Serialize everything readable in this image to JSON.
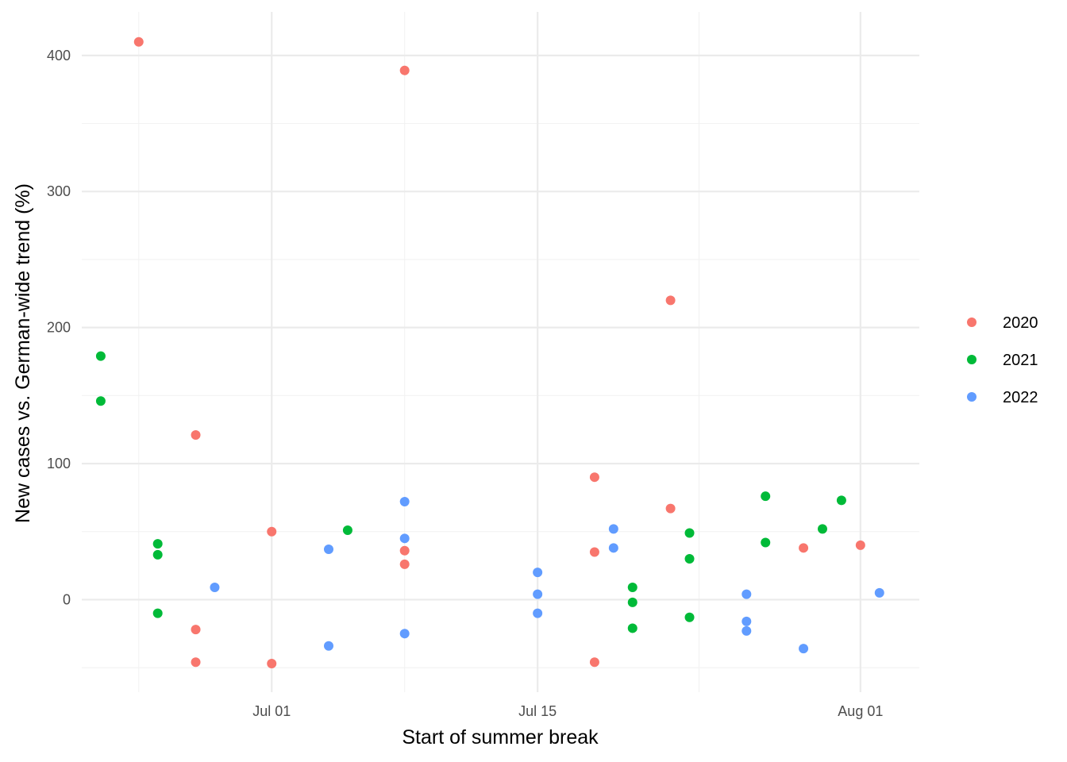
{
  "chart_data": {
    "type": "scatter",
    "xlabel": "Start of summer break",
    "ylabel": "New cases vs. German-wide trend (%)",
    "x_ticks": [
      {
        "date": "2020-07-01",
        "label": "Jul 01"
      },
      {
        "date": "2020-07-15",
        "label": "Jul 15"
      },
      {
        "date": "2020-08-01",
        "label": "Aug 01"
      }
    ],
    "y_ticks": [
      0,
      100,
      200,
      300,
      400
    ],
    "xlim": [
      "2020-06-22",
      "2020-08-04"
    ],
    "ylim": [
      -68,
      432
    ],
    "grid": true,
    "legend_position": "right",
    "series": [
      {
        "name": "2020",
        "color": "#F8766D",
        "points": [
          {
            "x": "2020-06-24",
            "y": 410
          },
          {
            "x": "2020-06-27",
            "y": 121
          },
          {
            "x": "2020-06-27",
            "y": -22
          },
          {
            "x": "2020-06-27",
            "y": -46
          },
          {
            "x": "2020-07-01",
            "y": 50
          },
          {
            "x": "2020-07-01",
            "y": -47
          },
          {
            "x": "2020-07-08",
            "y": 389
          },
          {
            "x": "2020-07-08",
            "y": 36
          },
          {
            "x": "2020-07-08",
            "y": 26
          },
          {
            "x": "2020-07-18",
            "y": 90
          },
          {
            "x": "2020-07-18",
            "y": 35
          },
          {
            "x": "2020-07-18",
            "y": -46
          },
          {
            "x": "2020-07-22",
            "y": 220
          },
          {
            "x": "2020-07-22",
            "y": 67
          },
          {
            "x": "2020-07-29",
            "y": 38
          },
          {
            "x": "2020-08-01",
            "y": 40
          }
        ]
      },
      {
        "name": "2021",
        "color": "#00BA38",
        "points": [
          {
            "x": "2020-06-22",
            "y": 179
          },
          {
            "x": "2020-06-22",
            "y": 146
          },
          {
            "x": "2020-06-25",
            "y": 41
          },
          {
            "x": "2020-06-25",
            "y": 33
          },
          {
            "x": "2020-06-25",
            "y": -10
          },
          {
            "x": "2020-07-05",
            "y": 51
          },
          {
            "x": "2020-07-20",
            "y": 9
          },
          {
            "x": "2020-07-20",
            "y": -2
          },
          {
            "x": "2020-07-20",
            "y": -21
          },
          {
            "x": "2020-07-23",
            "y": 49
          },
          {
            "x": "2020-07-23",
            "y": 30
          },
          {
            "x": "2020-07-23",
            "y": -13
          },
          {
            "x": "2020-07-27",
            "y": 76
          },
          {
            "x": "2020-07-27",
            "y": 42
          },
          {
            "x": "2020-07-30",
            "y": 52
          },
          {
            "x": "2020-07-31",
            "y": 73
          }
        ]
      },
      {
        "name": "2022",
        "color": "#619CFF",
        "points": [
          {
            "x": "2020-06-28",
            "y": 9
          },
          {
            "x": "2020-07-04",
            "y": 37
          },
          {
            "x": "2020-07-04",
            "y": -34
          },
          {
            "x": "2020-07-08",
            "y": 72
          },
          {
            "x": "2020-07-08",
            "y": 45
          },
          {
            "x": "2020-07-08",
            "y": -25
          },
          {
            "x": "2020-07-15",
            "y": 20
          },
          {
            "x": "2020-07-15",
            "y": 4
          },
          {
            "x": "2020-07-15",
            "y": -10
          },
          {
            "x": "2020-07-19",
            "y": 52
          },
          {
            "x": "2020-07-19",
            "y": 38
          },
          {
            "x": "2020-07-26",
            "y": 4
          },
          {
            "x": "2020-07-26",
            "y": -16
          },
          {
            "x": "2020-07-26",
            "y": -23
          },
          {
            "x": "2020-07-29",
            "y": -36
          },
          {
            "x": "2020-08-02",
            "y": 5
          }
        ]
      }
    ]
  }
}
